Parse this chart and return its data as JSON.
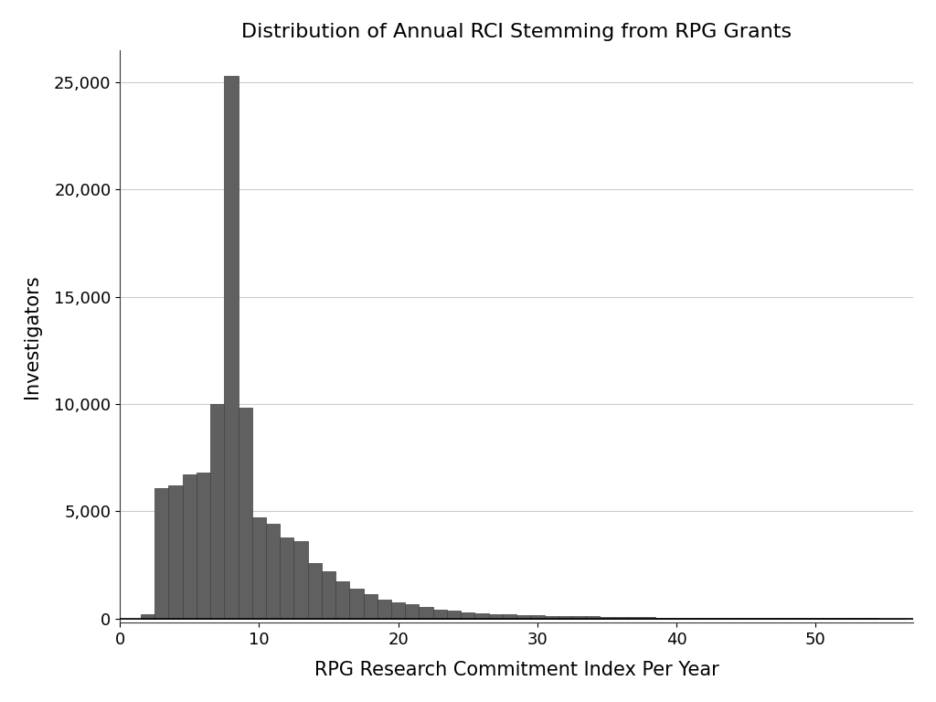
{
  "title": "Distribution of Annual RCI Stemming from RPG Grants",
  "xlabel": "RPG Research Commitment Index Per Year",
  "ylabel": "Investigators",
  "bar_color": "#606060",
  "bar_edgecolor": "#404040",
  "bar_linewidth": 0.5,
  "xlim": [
    0,
    57
  ],
  "ylim": [
    -200,
    26500
  ],
  "yticks": [
    0,
    5000,
    10000,
    15000,
    20000,
    25000
  ],
  "xticks": [
    0,
    10,
    20,
    30,
    40,
    50
  ],
  "grid_color": "#cccccc",
  "background_color": "#ffffff",
  "title_fontsize": 16,
  "axis_label_fontsize": 15,
  "tick_fontsize": 13,
  "bin_centers": [
    2,
    3,
    4,
    5,
    6,
    7,
    8,
    9,
    10,
    11,
    12,
    13,
    14,
    15,
    16,
    17,
    18,
    19,
    20,
    21,
    22,
    23,
    24,
    25,
    26,
    27,
    28,
    29,
    30,
    31,
    32,
    33,
    34,
    35,
    36,
    37,
    38,
    39,
    40,
    41,
    42,
    43,
    44,
    45,
    46,
    47,
    48,
    49,
    50,
    51,
    52,
    53,
    54,
    55,
    56
  ],
  "heights": [
    200,
    6100,
    6200,
    6700,
    6800,
    10000,
    25300,
    9850,
    4700,
    4400,
    3800,
    3600,
    2600,
    2200,
    1750,
    1400,
    1150,
    900,
    750,
    650,
    530,
    430,
    370,
    300,
    260,
    220,
    190,
    170,
    150,
    130,
    115,
    105,
    95,
    85,
    75,
    65,
    55,
    50,
    45,
    42,
    38,
    35,
    32,
    28,
    25,
    22,
    20,
    18,
    16,
    14,
    12,
    10,
    9,
    8,
    7
  ]
}
